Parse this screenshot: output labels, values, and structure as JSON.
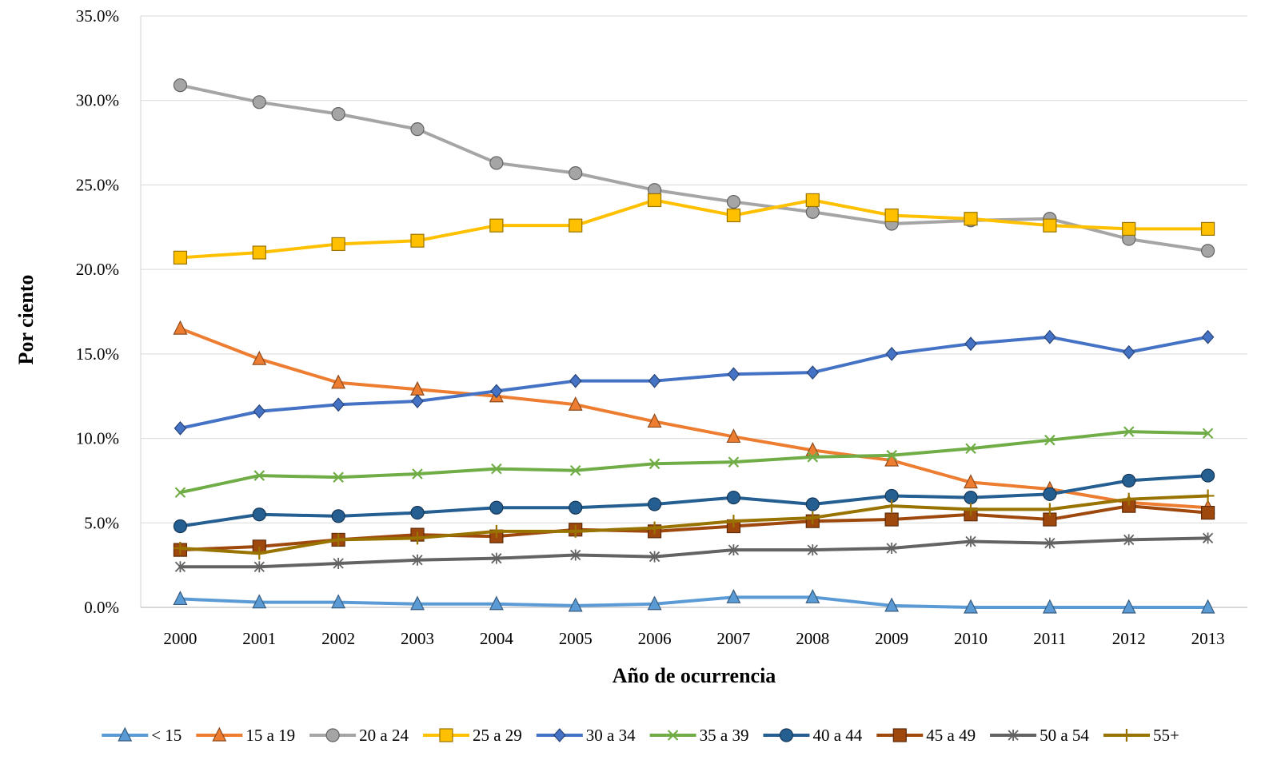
{
  "chart_data": {
    "type": "line",
    "title": "",
    "xlabel": "Año de ocurrencia",
    "ylabel": "Por ciento",
    "ylim": [
      0,
      35
    ],
    "y_ticks": [
      "0.0%",
      "5.0%",
      "10.0%",
      "15.0%",
      "20.0%",
      "25.0%",
      "30.0%",
      "35.0%"
    ],
    "grid": "horizontal",
    "legend_position": "bottom",
    "categories": [
      "2000",
      "2001",
      "2002",
      "2003",
      "2004",
      "2005",
      "2006",
      "2007",
      "2008",
      "2009",
      "2010",
      "2011",
      "2012",
      "2013"
    ],
    "series": [
      {
        "name": "< 15",
        "color": "#5b9bd5",
        "marker": "triangle",
        "values": [
          0.5,
          0.3,
          0.3,
          0.2,
          0.2,
          0.1,
          0.2,
          0.6,
          0.6,
          0.1,
          0.0,
          0.0,
          0.0,
          0.0
        ]
      },
      {
        "name": "15 a 19",
        "color": "#ed7d31",
        "marker": "triangle",
        "values": [
          16.5,
          14.7,
          13.3,
          12.9,
          12.5,
          12.0,
          11.0,
          10.1,
          9.3,
          8.7,
          7.4,
          7.0,
          6.2,
          5.9
        ]
      },
      {
        "name": "20 a 24",
        "color": "#a5a5a5",
        "marker": "circle",
        "values": [
          30.9,
          29.9,
          29.2,
          28.3,
          26.3,
          25.7,
          24.7,
          24.0,
          23.4,
          22.7,
          22.9,
          23.0,
          21.8,
          21.1
        ]
      },
      {
        "name": "25 a 29",
        "color": "#ffc000",
        "marker": "square",
        "values": [
          20.7,
          21.0,
          21.5,
          21.7,
          22.6,
          22.6,
          24.1,
          23.2,
          24.1,
          23.2,
          23.0,
          22.6,
          22.4,
          22.4
        ]
      },
      {
        "name": "30 a 34",
        "color": "#4472c4",
        "marker": "diamond",
        "values": [
          10.6,
          11.6,
          12.0,
          12.2,
          12.8,
          13.4,
          13.4,
          13.8,
          13.9,
          15.0,
          15.6,
          16.0,
          15.1,
          16.0
        ]
      },
      {
        "name": "35 a 39",
        "color": "#70ad47",
        "marker": "x",
        "values": [
          6.8,
          7.8,
          7.7,
          7.9,
          8.2,
          8.1,
          8.5,
          8.6,
          8.9,
          9.0,
          9.4,
          9.9,
          10.4,
          10.3
        ]
      },
      {
        "name": "40 a 44",
        "color": "#255e91",
        "marker": "circle",
        "values": [
          4.8,
          5.5,
          5.4,
          5.6,
          5.9,
          5.9,
          6.1,
          6.5,
          6.1,
          6.6,
          6.5,
          6.7,
          7.5,
          7.8
        ]
      },
      {
        "name": "45 a 49",
        "color": "#9e480e",
        "marker": "square",
        "values": [
          3.4,
          3.6,
          4.0,
          4.3,
          4.2,
          4.6,
          4.5,
          4.8,
          5.1,
          5.2,
          5.5,
          5.2,
          6.0,
          5.6
        ]
      },
      {
        "name": "50 a 54",
        "color": "#636363",
        "marker": "star",
        "values": [
          2.4,
          2.4,
          2.6,
          2.8,
          2.9,
          3.1,
          3.0,
          3.4,
          3.4,
          3.5,
          3.9,
          3.8,
          4.0,
          4.1
        ]
      },
      {
        "name": "55+",
        "color": "#997300",
        "marker": "plus",
        "values": [
          3.5,
          3.2,
          4.0,
          4.1,
          4.5,
          4.5,
          4.7,
          5.1,
          5.3,
          6.0,
          5.8,
          5.8,
          6.4,
          6.6
        ]
      }
    ]
  }
}
